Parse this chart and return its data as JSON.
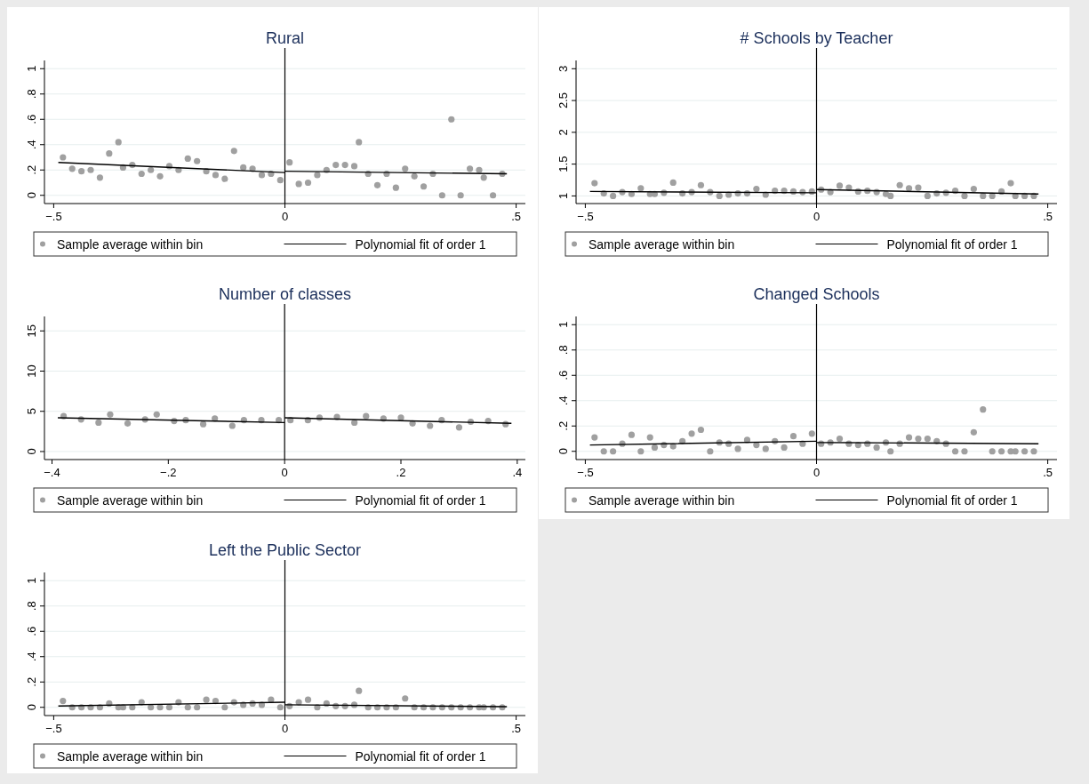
{
  "chart_data": [
    {
      "type": "scatter",
      "title": "Rural",
      "xlim": [
        -0.52,
        0.52
      ],
      "ylim": [
        -0.065,
        1.065
      ],
      "xticks": [
        {
          "value": -0.5,
          "label": "−.5"
        },
        {
          "value": 0,
          "label": "0"
        },
        {
          "value": 0.5,
          "label": ".5"
        }
      ],
      "yticks": [
        0,
        {
          "value": 0.2,
          "label": ".2"
        },
        {
          "value": 0.4,
          "label": ".4"
        },
        {
          "value": 0.6,
          "label": ".6"
        },
        {
          "value": 0.8,
          "label": ".8"
        },
        1
      ],
      "grid": "y",
      "legend": "bottom",
      "ref_lines": [
        {
          "axis": "x",
          "value": 0,
          "color": "#000000"
        }
      ],
      "series": [
        {
          "name": "Sample average within bin",
          "color": "#a0a0a0",
          "marker": "circle",
          "x": [
            -0.48,
            -0.46,
            -0.44,
            -0.42,
            -0.4,
            -0.38,
            -0.36,
            -0.35,
            -0.33,
            -0.31,
            -0.29,
            -0.27,
            -0.25,
            -0.23,
            -0.21,
            -0.19,
            -0.17,
            -0.15,
            -0.13,
            -0.11,
            -0.09,
            -0.07,
            -0.05,
            -0.03,
            -0.01,
            0.01,
            0.03,
            0.05,
            0.07,
            0.09,
            0.11,
            0.13,
            0.15,
            0.16,
            0.18,
            0.2,
            0.22,
            0.24,
            0.26,
            0.28,
            0.3,
            0.32,
            0.34,
            0.36,
            0.38,
            0.4,
            0.42,
            0.43,
            0.45,
            0.47
          ],
          "values": [
            0.3,
            0.21,
            0.19,
            0.2,
            0.14,
            0.33,
            0.42,
            0.22,
            0.24,
            0.17,
            0.2,
            0.15,
            0.23,
            0.2,
            0.29,
            0.27,
            0.19,
            0.16,
            0.13,
            0.35,
            0.22,
            0.21,
            0.16,
            0.17,
            0.12,
            0.26,
            0.09,
            0.1,
            0.16,
            0.2,
            0.24,
            0.24,
            0.23,
            0.42,
            0.17,
            0.08,
            0.17,
            0.06,
            0.21,
            0.15,
            0.07,
            0.17,
            0,
            0.6,
            0,
            0.21,
            0.2,
            0.14,
            0,
            0.17
          ]
        },
        {
          "name": "Polynomial fit of order 1",
          "type": "line",
          "color": "#000000",
          "marker": "none",
          "x": [
            -0.49,
            0,
            null,
            0,
            0.48
          ],
          "values": [
            0.26,
            0.18,
            null,
            0.19,
            0.17
          ]
        }
      ]
    },
    {
      "type": "scatter",
      "title": "# Schools by Teacher",
      "xlim": [
        -0.52,
        0.52
      ],
      "ylim": [
        0.88,
        3.13
      ],
      "xticks": [
        {
          "value": -0.5,
          "label": "−.5"
        },
        {
          "value": 0,
          "label": "0"
        },
        {
          "value": 0.5,
          "label": ".5"
        }
      ],
      "yticks": [
        1,
        1.5,
        2,
        2.5,
        3
      ],
      "grid": "y",
      "legend": "bottom",
      "ref_lines": [
        {
          "axis": "x",
          "value": 0,
          "color": "#000000"
        }
      ],
      "series": [
        {
          "name": "Sample average within bin",
          "color": "#a0a0a0",
          "marker": "circle",
          "x": [
            -0.48,
            -0.46,
            -0.44,
            -0.42,
            -0.4,
            -0.38,
            -0.36,
            -0.35,
            -0.33,
            -0.31,
            -0.29,
            -0.27,
            -0.25,
            -0.23,
            -0.21,
            -0.19,
            -0.17,
            -0.15,
            -0.13,
            -0.11,
            -0.09,
            -0.07,
            -0.05,
            -0.03,
            -0.01,
            0.01,
            0.03,
            0.05,
            0.07,
            0.09,
            0.11,
            0.13,
            0.15,
            0.16,
            0.18,
            0.2,
            0.22,
            0.24,
            0.26,
            0.28,
            0.3,
            0.32,
            0.34,
            0.36,
            0.38,
            0.4,
            0.42,
            0.43,
            0.45,
            0.47
          ],
          "values": [
            1.2,
            1.04,
            1.0,
            1.06,
            1.03,
            1.12,
            1.03,
            1.03,
            1.05,
            1.21,
            1.04,
            1.06,
            1.17,
            1.06,
            1.0,
            1.02,
            1.04,
            1.04,
            1.11,
            1.02,
            1.08,
            1.08,
            1.07,
            1.06,
            1.07,
            1.1,
            1.06,
            1.16,
            1.13,
            1.07,
            1.08,
            1.06,
            1.03,
            1.0,
            1.17,
            1.12,
            1.13,
            1.0,
            1.04,
            1.05,
            1.08,
            1.0,
            1.11,
            1.0,
            1.0,
            1.07,
            1.2,
            1.0,
            1.0,
            1.0
          ]
        },
        {
          "name": "Polynomial fit of order 1",
          "type": "line",
          "color": "#000000",
          "marker": "none",
          "x": [
            -0.49,
            0,
            null,
            0,
            0.48
          ],
          "values": [
            1.07,
            1.05,
            null,
            1.1,
            1.03
          ]
        }
      ]
    },
    {
      "type": "scatter",
      "title": "Number of classes",
      "xlim": [
        -0.413,
        0.414
      ],
      "ylim": [
        -1,
        16.8
      ],
      "xticks": [
        {
          "value": -0.4,
          "label": "−.4"
        },
        {
          "value": -0.2,
          "label": "−.2"
        },
        {
          "value": 0,
          "label": "0"
        },
        {
          "value": 0.2,
          "label": ".2"
        },
        {
          "value": 0.4,
          "label": ".4"
        }
      ],
      "yticks": [
        0,
        5,
        10,
        15
      ],
      "grid": "y",
      "legend": "bottom",
      "ref_lines": [
        {
          "axis": "x",
          "value": 0,
          "color": "#000000"
        }
      ],
      "series": [
        {
          "name": "Sample average within bin",
          "color": "#a0a0a0",
          "marker": "circle",
          "x": [
            -0.38,
            -0.35,
            -0.32,
            -0.3,
            -0.27,
            -0.24,
            -0.22,
            -0.19,
            -0.17,
            -0.14,
            -0.12,
            -0.09,
            -0.07,
            -0.04,
            -0.01,
            0.01,
            0.04,
            0.06,
            0.09,
            0.12,
            0.14,
            0.17,
            0.2,
            0.22,
            0.25,
            0.27,
            0.3,
            0.32,
            0.35,
            0.38
          ],
          "values": [
            4.4,
            4.0,
            3.6,
            4.6,
            3.5,
            4.0,
            4.6,
            3.8,
            3.9,
            3.4,
            4.1,
            3.2,
            3.9,
            3.9,
            3.9,
            3.9,
            3.9,
            4.2,
            4.3,
            3.6,
            4.4,
            4.1,
            4.2,
            3.5,
            3.2,
            3.9,
            3.0,
            3.7,
            3.8,
            3.4
          ]
        },
        {
          "name": "Polynomial fit of order 1",
          "type": "line",
          "color": "#000000",
          "marker": "none",
          "x": [
            -0.39,
            0,
            null,
            0,
            0.39
          ],
          "values": [
            4.2,
            3.6,
            null,
            4.2,
            3.5
          ]
        }
      ]
    },
    {
      "type": "scatter",
      "title": "Changed Schools",
      "xlim": [
        -0.52,
        0.52
      ],
      "ylim": [
        -0.065,
        1.065
      ],
      "xticks": [
        {
          "value": -0.5,
          "label": "−.5"
        },
        {
          "value": 0,
          "label": "0"
        },
        {
          "value": 0.5,
          "label": ".5"
        }
      ],
      "yticks": [
        0,
        {
          "value": 0.2,
          "label": ".2"
        },
        {
          "value": 0.4,
          "label": ".4"
        },
        {
          "value": 0.6,
          "label": ".6"
        },
        {
          "value": 0.8,
          "label": ".8"
        },
        1
      ],
      "grid": "y",
      "legend": "bottom",
      "ref_lines": [
        {
          "axis": "x",
          "value": 0,
          "color": "#000000"
        }
      ],
      "series": [
        {
          "name": "Sample average within bin",
          "color": "#a0a0a0",
          "marker": "circle",
          "x": [
            -0.48,
            -0.46,
            -0.44,
            -0.42,
            -0.4,
            -0.38,
            -0.36,
            -0.35,
            -0.33,
            -0.31,
            -0.29,
            -0.27,
            -0.25,
            -0.23,
            -0.21,
            -0.19,
            -0.17,
            -0.15,
            -0.13,
            -0.11,
            -0.09,
            -0.07,
            -0.05,
            -0.03,
            -0.01,
            0.01,
            0.03,
            0.05,
            0.07,
            0.09,
            0.11,
            0.13,
            0.15,
            0.16,
            0.18,
            0.2,
            0.22,
            0.24,
            0.26,
            0.28,
            0.3,
            0.32,
            0.34,
            0.36,
            0.38,
            0.4,
            0.42,
            0.43,
            0.45,
            0.47
          ],
          "values": [
            0.11,
            0,
            0,
            0.06,
            0.13,
            0,
            0.11,
            0.03,
            0.05,
            0.04,
            0.08,
            0.14,
            0.17,
            0,
            0.07,
            0.06,
            0.02,
            0.09,
            0.05,
            0.02,
            0.08,
            0.03,
            0.12,
            0.06,
            0.14,
            0.06,
            0.07,
            0.1,
            0.06,
            0.05,
            0.06,
            0.03,
            0.07,
            0,
            0.06,
            0.11,
            0.1,
            0.1,
            0.08,
            0.06,
            0,
            0,
            0.15,
            0.33,
            0,
            0,
            0,
            0,
            0,
            0
          ]
        },
        {
          "name": "Polynomial fit of order 1",
          "type": "line",
          "color": "#000000",
          "marker": "none",
          "x": [
            -0.49,
            0,
            null,
            0,
            0.48
          ],
          "values": [
            0.05,
            0.08,
            null,
            0.07,
            0.06
          ]
        }
      ]
    },
    {
      "type": "scatter",
      "title": "Left the Public Sector",
      "xlim": [
        -0.52,
        0.52
      ],
      "ylim": [
        -0.065,
        1.065
      ],
      "xticks": [
        {
          "value": -0.5,
          "label": "−.5"
        },
        {
          "value": 0,
          "label": "0"
        },
        {
          "value": 0.5,
          "label": ".5"
        }
      ],
      "yticks": [
        0,
        {
          "value": 0.2,
          "label": ".2"
        },
        {
          "value": 0.4,
          "label": ".4"
        },
        {
          "value": 0.6,
          "label": ".6"
        },
        {
          "value": 0.8,
          "label": ".8"
        },
        1
      ],
      "grid": "y",
      "legend": "bottom",
      "ref_lines": [
        {
          "axis": "x",
          "value": 0,
          "color": "#000000"
        }
      ],
      "series": [
        {
          "name": "Sample average within bin",
          "color": "#a0a0a0",
          "marker": "circle",
          "x": [
            -0.48,
            -0.46,
            -0.44,
            -0.42,
            -0.4,
            -0.38,
            -0.36,
            -0.35,
            -0.33,
            -0.31,
            -0.29,
            -0.27,
            -0.25,
            -0.23,
            -0.21,
            -0.19,
            -0.17,
            -0.15,
            -0.13,
            -0.11,
            -0.09,
            -0.07,
            -0.05,
            -0.03,
            -0.01,
            0.01,
            0.03,
            0.05,
            0.07,
            0.09,
            0.11,
            0.13,
            0.15,
            0.16,
            0.18,
            0.2,
            0.22,
            0.24,
            0.26,
            0.28,
            0.3,
            0.32,
            0.34,
            0.36,
            0.38,
            0.4,
            0.42,
            0.43,
            0.45,
            0.47
          ],
          "values": [
            0.05,
            0,
            0,
            0,
            0,
            0.03,
            0,
            0,
            0,
            0.04,
            0,
            0,
            0,
            0.04,
            0,
            0,
            0.06,
            0.05,
            0,
            0.04,
            0.02,
            0.03,
            0.02,
            0.06,
            0,
            0.01,
            0.04,
            0.06,
            0,
            0.03,
            0.01,
            0.01,
            0.02,
            0.13,
            0,
            0,
            0,
            0,
            0.07,
            0,
            0,
            0,
            0,
            0,
            0,
            0,
            0,
            0,
            0,
            0
          ]
        },
        {
          "name": "Polynomial fit of order 1",
          "type": "line",
          "color": "#000000",
          "marker": "none",
          "x": [
            -0.49,
            0,
            null,
            0,
            0.48
          ],
          "values": [
            0.01,
            0.04,
            null,
            0.02,
            0.005
          ]
        }
      ]
    }
  ]
}
